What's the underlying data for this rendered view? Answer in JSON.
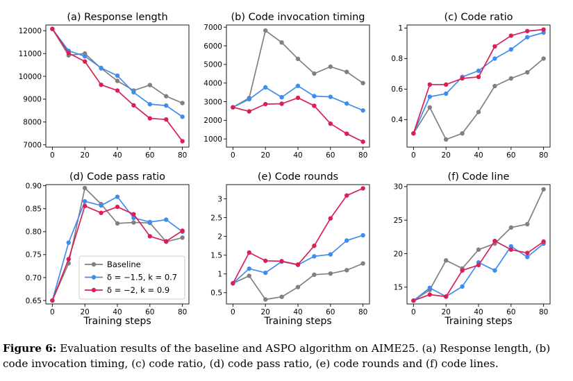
{
  "figure": {
    "label": "Figure",
    "number": "6:",
    "text": "Evaluation results of the baseline and ASPO algorithm on AIME25. (a) Response length, (b) code invocation timing, (c) code ratio, (d) code pass ratio, (e) code rounds and (f) code lines."
  },
  "legend": {
    "entries": [
      "Baseline",
      "δ = −1.5, k = 0.7",
      "δ = −2, k = 0.9"
    ]
  },
  "colors": {
    "baseline": "#808080",
    "blue": "#3f8cf0",
    "red": "#db1f55"
  },
  "chart_data": [
    {
      "type": "line",
      "title": "(a) Response length",
      "xlabel": "",
      "x": [
        0,
        10,
        20,
        30,
        40,
        50,
        60,
        70,
        80
      ],
      "xticks": [
        0,
        20,
        40,
        60,
        80
      ],
      "yticks": [
        7000,
        8000,
        9000,
        10000,
        11000,
        12000
      ],
      "xlim": [
        -4,
        84
      ],
      "ylim": [
        6900,
        12250
      ],
      "series": [
        {
          "name": "Baseline",
          "values": [
            12080,
            10920,
            11000,
            10350,
            9800,
            9380,
            9620,
            9130,
            8830
          ]
        },
        {
          "name": "δ = −1.5, k = 0.7",
          "values": [
            12080,
            11120,
            10880,
            10370,
            10030,
            9300,
            8780,
            8720,
            8230
          ]
        },
        {
          "name": "δ = −2, k = 0.9",
          "values": [
            12080,
            11020,
            10650,
            9630,
            9380,
            8730,
            8160,
            8110,
            7160
          ]
        }
      ]
    },
    {
      "type": "line",
      "title": "(b) Code invocation timing",
      "xlabel": "",
      "x": [
        0,
        10,
        20,
        30,
        40,
        50,
        60,
        70,
        80
      ],
      "xticks": [
        0,
        20,
        40,
        60,
        80
      ],
      "yticks": [
        1000,
        2000,
        3000,
        4000,
        5000,
        6000,
        7000
      ],
      "xlim": [
        -4,
        84
      ],
      "ylim": [
        560,
        7120
      ],
      "series": [
        {
          "name": "Baseline",
          "values": [
            2700,
            3200,
            6820,
            6180,
            5300,
            4510,
            4880,
            4600,
            4000
          ]
        },
        {
          "name": "δ = −1.5, k = 0.7",
          "values": [
            2700,
            3130,
            3770,
            3240,
            3850,
            3300,
            3260,
            2900,
            2530
          ]
        },
        {
          "name": "δ = −2, k = 0.9",
          "values": [
            2700,
            2480,
            2870,
            2890,
            3210,
            2780,
            1820,
            1280,
            850
          ]
        }
      ]
    },
    {
      "type": "line",
      "title": "(c) Code ratio",
      "xlabel": "",
      "x": [
        0,
        10,
        20,
        30,
        40,
        50,
        60,
        70,
        80
      ],
      "xticks": [
        0,
        20,
        40,
        60,
        80
      ],
      "yticks": [
        0.4,
        0.6,
        0.8,
        1.0
      ],
      "xlim": [
        -4,
        84
      ],
      "ylim": [
        0.22,
        1.02
      ],
      "series": [
        {
          "name": "Baseline",
          "values": [
            0.31,
            0.48,
            0.27,
            0.31,
            0.45,
            0.62,
            0.67,
            0.71,
            0.8
          ]
        },
        {
          "name": "δ = −1.5, k = 0.7",
          "values": [
            0.31,
            0.55,
            0.57,
            0.68,
            0.72,
            0.8,
            0.86,
            0.94,
            0.97
          ]
        },
        {
          "name": "δ = −2, k = 0.9",
          "values": [
            0.31,
            0.63,
            0.63,
            0.67,
            0.68,
            0.88,
            0.95,
            0.98,
            0.99
          ]
        }
      ]
    },
    {
      "type": "line",
      "title": "(d) Code pass ratio",
      "xlabel": "Training steps",
      "x": [
        0,
        10,
        20,
        30,
        40,
        50,
        60,
        70,
        80
      ],
      "xticks": [
        0,
        20,
        40,
        60,
        80
      ],
      "yticks": [
        0.65,
        0.7,
        0.75,
        0.8,
        0.85,
        0.9
      ],
      "ytickLabels": [
        "0.65",
        "0.70",
        "0.75",
        "0.80",
        "0.85",
        "0.90"
      ],
      "xlim": [
        -4,
        84
      ],
      "ylim": [
        0.6425,
        0.9025
      ],
      "legend": "lower-left",
      "series": [
        {
          "name": "Baseline",
          "values": [
            0.65,
            0.731,
            0.895,
            0.86,
            0.818,
            0.82,
            0.819,
            0.778,
            0.787
          ]
        },
        {
          "name": "δ = −1.5, k = 0.7",
          "values": [
            0.65,
            0.776,
            0.866,
            0.857,
            0.876,
            0.83,
            0.821,
            0.826,
            0.8
          ]
        },
        {
          "name": "δ = −2, k = 0.9",
          "values": [
            0.65,
            0.74,
            0.856,
            0.841,
            0.854,
            0.838,
            0.79,
            0.779,
            0.802
          ]
        }
      ]
    },
    {
      "type": "line",
      "title": "(e) Code rounds",
      "xlabel": "Training steps",
      "x": [
        0,
        10,
        20,
        30,
        40,
        50,
        60,
        70,
        80
      ],
      "xticks": [
        0,
        20,
        40,
        60,
        80
      ],
      "yticks": [
        0.5,
        1.0,
        1.5,
        2.0,
        2.5,
        3.0
      ],
      "xlim": [
        -4,
        84
      ],
      "ylim": [
        0.2,
        3.38
      ],
      "series": [
        {
          "name": "Baseline",
          "values": [
            0.75,
            0.95,
            0.32,
            0.39,
            0.65,
            0.98,
            1.01,
            1.1,
            1.28
          ]
        },
        {
          "name": "δ = −1.5, k = 0.7",
          "values": [
            0.75,
            1.14,
            1.03,
            1.33,
            1.24,
            1.47,
            1.52,
            1.89,
            2.03
          ]
        },
        {
          "name": "δ = −2, k = 0.9",
          "values": [
            0.75,
            1.57,
            1.35,
            1.34,
            1.25,
            1.75,
            2.48,
            3.09,
            3.28
          ]
        }
      ]
    },
    {
      "type": "line",
      "title": "(f) Code line",
      "xlabel": "Training steps",
      "x": [
        0,
        10,
        20,
        30,
        40,
        50,
        60,
        70,
        80
      ],
      "xticks": [
        0,
        20,
        40,
        60,
        80
      ],
      "yticks": [
        15,
        20,
        25,
        30
      ],
      "xlim": [
        -4,
        84
      ],
      "ylim": [
        12.5,
        30.3
      ],
      "series": [
        {
          "name": "Baseline",
          "values": [
            13.0,
            14.6,
            19.0,
            17.8,
            20.6,
            21.5,
            23.9,
            24.4,
            29.6
          ]
        },
        {
          "name": "δ = −1.5, k = 0.7",
          "values": [
            13.0,
            14.9,
            13.6,
            15.1,
            18.7,
            17.5,
            21.1,
            19.5,
            21.5
          ]
        },
        {
          "name": "δ = −2, k = 0.9",
          "values": [
            13.0,
            13.9,
            13.6,
            17.5,
            18.3,
            21.9,
            20.6,
            20.1,
            21.8
          ]
        }
      ]
    }
  ]
}
